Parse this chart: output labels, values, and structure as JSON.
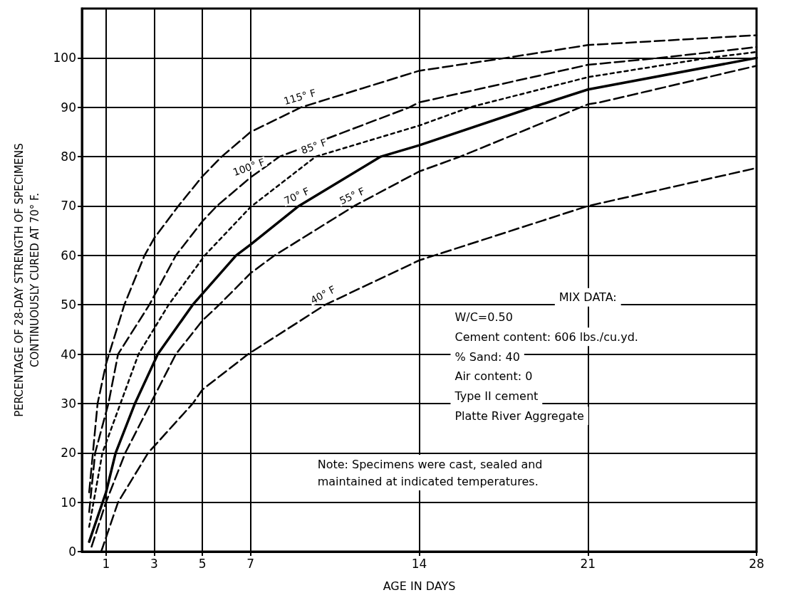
{
  "chart_data": {
    "type": "line",
    "xlabel": "AGE IN DAYS",
    "ylabel": "PERCENTAGE OF 28-DAY STRENGTH OF SPECIMENS\nCONTINUOUSLY CURED AT 70° F.",
    "xlim": [
      0,
      28
    ],
    "xticks": [
      1,
      3,
      5,
      7,
      14,
      21,
      28
    ],
    "ylim": [
      0,
      110
    ],
    "yticks": [
      0,
      10,
      20,
      30,
      40,
      50,
      60,
      70,
      80,
      90,
      100
    ],
    "grid": true,
    "legend": false,
    "marker": "none",
    "series": [
      {
        "name": "115° F",
        "color": "#000000",
        "line_style": "dashed",
        "x": [
          0.3,
          0.65,
          1,
          1.76,
          2.6,
          3,
          4,
          5,
          5.8,
          7,
          9.1,
          14,
          17.6,
          21,
          28
        ],
        "values": [
          12,
          30,
          38,
          50,
          60,
          63.5,
          70,
          76,
          80,
          85,
          90,
          97.4,
          100,
          102.6,
          104.6
        ]
      },
      {
        "name": "100° F",
        "color": "#000000",
        "line_style": "dashed",
        "x": [
          0.3,
          0.55,
          1.1,
          1.5,
          2.8,
          3.9,
          5,
          5.6,
          7,
          8.2,
          13.6,
          14,
          21,
          24,
          28
        ],
        "values": [
          8,
          20,
          30,
          40,
          50,
          60,
          66.9,
          70,
          75.8,
          80,
          90,
          91,
          98.6,
          100,
          102.2
        ]
      },
      {
        "name": "85° F",
        "color": "#000000",
        "line_style": "dotted",
        "x": [
          0.3,
          0.85,
          1.6,
          2.35,
          3.6,
          5.1,
          7,
          9.7,
          14,
          16.1,
          21,
          26,
          28
        ],
        "values": [
          5,
          20,
          30,
          40,
          50,
          60,
          69.8,
          80,
          86.3,
          90,
          96.1,
          100,
          101.2
        ]
      },
      {
        "name": "70° F",
        "color": "#000000",
        "line_style": "solid",
        "x": [
          0.3,
          1,
          1.4,
          2.2,
          3.15,
          4.6,
          6.4,
          7,
          9,
          12.4,
          14,
          18.7,
          21,
          28
        ],
        "values": [
          2,
          12,
          20,
          30,
          40,
          50,
          60,
          62.2,
          70,
          80,
          82.3,
          90,
          93.6,
          100
        ]
      },
      {
        "name": "55° F",
        "color": "#000000",
        "line_style": "dashed",
        "x": [
          0.4,
          1,
          1.8,
          2.85,
          3.9,
          5,
          5.7,
          7,
          8,
          11.3,
          14,
          15.7,
          21,
          21.5,
          28
        ],
        "values": [
          1,
          10,
          20,
          30,
          40,
          46.8,
          50,
          56.4,
          60,
          70,
          77,
          80,
          90.6,
          91,
          98.4
        ]
      },
      {
        "name": "40° F",
        "color": "#000000",
        "line_style": "dashed",
        "x": [
          0.8,
          1.5,
          2.75,
          4.6,
          5,
          6.9,
          10.1,
          14,
          21,
          28
        ],
        "values": [
          0,
          10,
          20,
          30,
          32.8,
          40,
          50,
          59,
          70,
          77.7
        ]
      }
    ],
    "annotations": [
      "MIX DATA:",
      "W/C=0.50",
      "Cement content: 606 lbs./cu.yd.",
      "% Sand: 40",
      "Air content: 0",
      "Type II cement",
      "Platte River Aggregate",
      "Note: Specimens were cast, sealed and\nmaintained at indicated temperatures."
    ]
  }
}
